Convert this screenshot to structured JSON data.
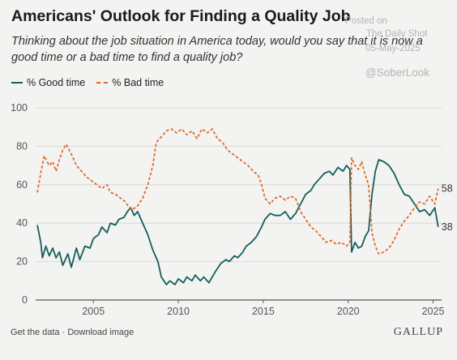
{
  "chart_data": {
    "type": "line",
    "title": "Americans' Outlook for Finding a Quality Job",
    "subtitle": "Thinking about the job situation in America today, would you say that it is now a good time or a bad time to find a quality job?",
    "xlabel": "",
    "ylabel": "",
    "xlim": [
      2001.6,
      2025.5
    ],
    "ylim": [
      0,
      100
    ],
    "x_ticks": [
      "2005",
      "2010",
      "2015",
      "2020",
      "2025"
    ],
    "y_ticks": [
      "0",
      "20",
      "40",
      "60",
      "80",
      "100"
    ],
    "grid": true,
    "legend_position": "top-left",
    "series": [
      {
        "name": "% Good time",
        "color": "#135f5d",
        "style": "solid",
        "end_label": "38",
        "points": [
          [
            2001.7,
            39
          ],
          [
            2001.9,
            30
          ],
          [
            2002.0,
            22
          ],
          [
            2002.2,
            28
          ],
          [
            2002.4,
            23
          ],
          [
            2002.6,
            27
          ],
          [
            2002.8,
            22
          ],
          [
            2003.0,
            25
          ],
          [
            2003.2,
            18
          ],
          [
            2003.5,
            24
          ],
          [
            2003.7,
            17
          ],
          [
            2004.0,
            27
          ],
          [
            2004.2,
            21
          ],
          [
            2004.5,
            28
          ],
          [
            2004.8,
            27
          ],
          [
            2005.0,
            32
          ],
          [
            2005.3,
            34
          ],
          [
            2005.5,
            38
          ],
          [
            2005.8,
            35
          ],
          [
            2006.0,
            40
          ],
          [
            2006.3,
            39
          ],
          [
            2006.5,
            42
          ],
          [
            2006.8,
            43
          ],
          [
            2007.0,
            46
          ],
          [
            2007.2,
            48
          ],
          [
            2007.4,
            44
          ],
          [
            2007.6,
            46
          ],
          [
            2007.8,
            42
          ],
          [
            2008.0,
            38
          ],
          [
            2008.2,
            34
          ],
          [
            2008.5,
            26
          ],
          [
            2008.8,
            20
          ],
          [
            2009.0,
            12
          ],
          [
            2009.3,
            8
          ],
          [
            2009.5,
            10
          ],
          [
            2009.8,
            8
          ],
          [
            2010.0,
            11
          ],
          [
            2010.3,
            9
          ],
          [
            2010.5,
            12
          ],
          [
            2010.8,
            10
          ],
          [
            2011.0,
            13
          ],
          [
            2011.3,
            10
          ],
          [
            2011.5,
            12
          ],
          [
            2011.8,
            9
          ],
          [
            2012.0,
            12
          ],
          [
            2012.2,
            15
          ],
          [
            2012.5,
            19
          ],
          [
            2012.8,
            21
          ],
          [
            2013.0,
            20
          ],
          [
            2013.3,
            23
          ],
          [
            2013.5,
            22
          ],
          [
            2013.8,
            25
          ],
          [
            2014.0,
            28
          ],
          [
            2014.3,
            30
          ],
          [
            2014.6,
            33
          ],
          [
            2014.9,
            38
          ],
          [
            2015.1,
            42
          ],
          [
            2015.4,
            45
          ],
          [
            2015.7,
            44
          ],
          [
            2016.0,
            44
          ],
          [
            2016.3,
            46
          ],
          [
            2016.6,
            42
          ],
          [
            2016.9,
            45
          ],
          [
            2017.2,
            50
          ],
          [
            2017.5,
            55
          ],
          [
            2017.8,
            57
          ],
          [
            2018.0,
            60
          ],
          [
            2018.3,
            63
          ],
          [
            2018.6,
            66
          ],
          [
            2018.9,
            67
          ],
          [
            2019.1,
            65
          ],
          [
            2019.4,
            69
          ],
          [
            2019.7,
            67
          ],
          [
            2019.9,
            70
          ],
          [
            2020.1,
            68
          ],
          [
            2020.2,
            25
          ],
          [
            2020.4,
            30
          ],
          [
            2020.6,
            27
          ],
          [
            2020.8,
            28
          ],
          [
            2021.0,
            33
          ],
          [
            2021.2,
            36
          ],
          [
            2021.4,
            55
          ],
          [
            2021.6,
            67
          ],
          [
            2021.8,
            73
          ],
          [
            2022.1,
            72
          ],
          [
            2022.4,
            70
          ],
          [
            2022.7,
            66
          ],
          [
            2023.0,
            60
          ],
          [
            2023.3,
            55
          ],
          [
            2023.6,
            54
          ],
          [
            2023.9,
            50
          ],
          [
            2024.2,
            46
          ],
          [
            2024.5,
            47
          ],
          [
            2024.8,
            44
          ],
          [
            2025.1,
            48
          ],
          [
            2025.3,
            38
          ]
        ]
      },
      {
        "name": "% Bad time",
        "color": "#e06a2c",
        "style": "dashed",
        "end_label": "58",
        "points": [
          [
            2001.7,
            56
          ],
          [
            2001.9,
            66
          ],
          [
            2002.1,
            75
          ],
          [
            2002.4,
            70
          ],
          [
            2002.6,
            72
          ],
          [
            2002.8,
            67
          ],
          [
            2003.0,
            73
          ],
          [
            2003.2,
            78
          ],
          [
            2003.4,
            81
          ],
          [
            2003.7,
            76
          ],
          [
            2004.0,
            70
          ],
          [
            2004.3,
            67
          ],
          [
            2004.6,
            64
          ],
          [
            2004.9,
            62
          ],
          [
            2005.2,
            60
          ],
          [
            2005.5,
            58
          ],
          [
            2005.8,
            60
          ],
          [
            2006.0,
            56
          ],
          [
            2006.3,
            55
          ],
          [
            2006.6,
            53
          ],
          [
            2006.9,
            51
          ],
          [
            2007.1,
            48
          ],
          [
            2007.3,
            47
          ],
          [
            2007.6,
            49
          ],
          [
            2007.9,
            53
          ],
          [
            2008.2,
            60
          ],
          [
            2008.5,
            70
          ],
          [
            2008.7,
            82
          ],
          [
            2009.0,
            85
          ],
          [
            2009.3,
            88
          ],
          [
            2009.6,
            89
          ],
          [
            2009.9,
            87
          ],
          [
            2010.2,
            89
          ],
          [
            2010.5,
            86
          ],
          [
            2010.8,
            88
          ],
          [
            2011.1,
            84
          ],
          [
            2011.4,
            89
          ],
          [
            2011.7,
            87
          ],
          [
            2012.0,
            89
          ],
          [
            2012.3,
            84
          ],
          [
            2012.6,
            82
          ],
          [
            2012.9,
            78
          ],
          [
            2013.2,
            76
          ],
          [
            2013.5,
            74
          ],
          [
            2013.8,
            72
          ],
          [
            2014.1,
            70
          ],
          [
            2014.4,
            67
          ],
          [
            2014.7,
            65
          ],
          [
            2014.9,
            60
          ],
          [
            2015.1,
            53
          ],
          [
            2015.4,
            50
          ],
          [
            2015.7,
            53
          ],
          [
            2016.0,
            54
          ],
          [
            2016.3,
            52
          ],
          [
            2016.6,
            54
          ],
          [
            2016.9,
            53
          ],
          [
            2017.2,
            46
          ],
          [
            2017.5,
            42
          ],
          [
            2017.8,
            38
          ],
          [
            2018.1,
            36
          ],
          [
            2018.4,
            33
          ],
          [
            2018.7,
            30
          ],
          [
            2019.0,
            31
          ],
          [
            2019.3,
            29
          ],
          [
            2019.6,
            30
          ],
          [
            2019.9,
            28
          ],
          [
            2020.1,
            30
          ],
          [
            2020.2,
            74
          ],
          [
            2020.4,
            70
          ],
          [
            2020.6,
            68
          ],
          [
            2020.8,
            72
          ],
          [
            2021.0,
            65
          ],
          [
            2021.2,
            60
          ],
          [
            2021.4,
            35
          ],
          [
            2021.6,
            28
          ],
          [
            2021.8,
            24
          ],
          [
            2022.1,
            25
          ],
          [
            2022.4,
            27
          ],
          [
            2022.7,
            31
          ],
          [
            2023.0,
            37
          ],
          [
            2023.3,
            41
          ],
          [
            2023.6,
            44
          ],
          [
            2023.9,
            48
          ],
          [
            2024.2,
            51
          ],
          [
            2024.5,
            50
          ],
          [
            2024.8,
            54
          ],
          [
            2025.1,
            50
          ],
          [
            2025.3,
            58
          ]
        ]
      }
    ]
  },
  "watermark": {
    "line1": "Posted on",
    "line2": "The Daily Shot",
    "line3": "05-May-2025",
    "handle": "@SoberLook"
  },
  "footer": {
    "get_data": "Get the data",
    "separator": "·",
    "download": "Download image",
    "brand": "GALLUP"
  }
}
